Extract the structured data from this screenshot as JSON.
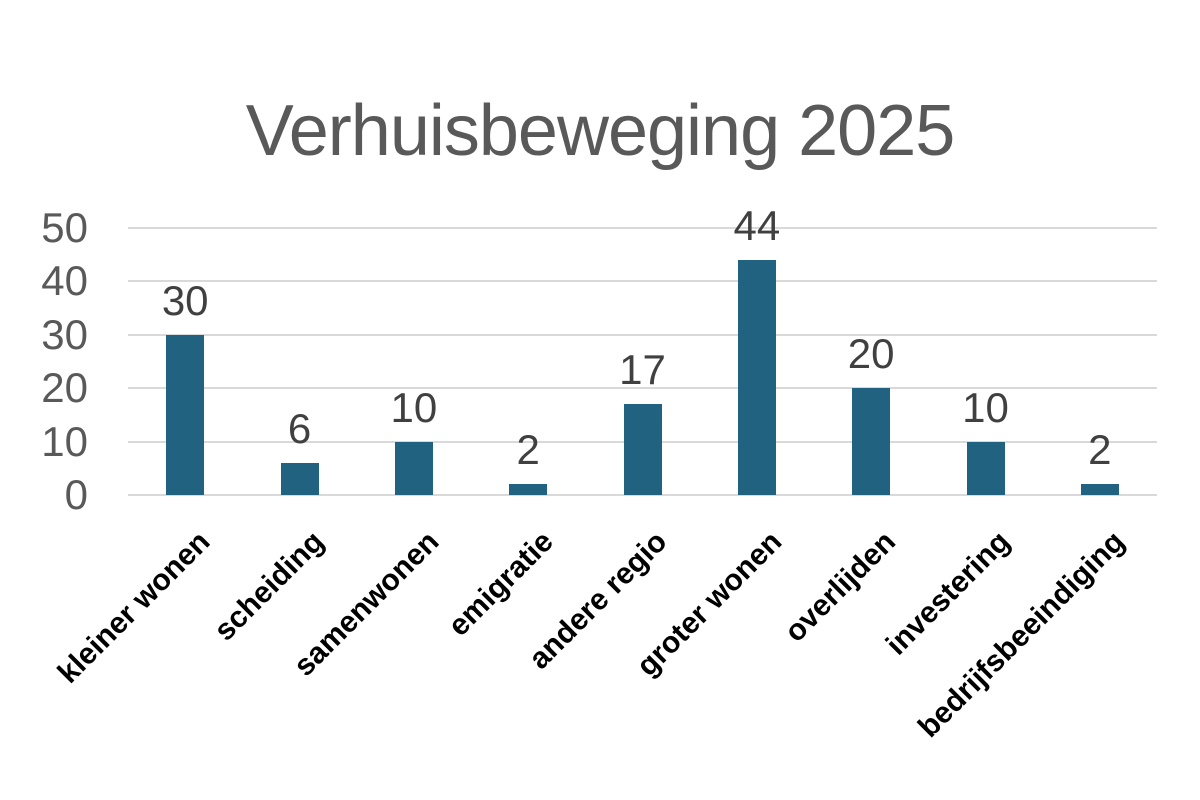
{
  "chart_data": {
    "type": "bar",
    "title": "Verhuisbeweging 2025",
    "categories": [
      "kleiner wonen",
      "scheiding",
      "samenwonen",
      "emigratie",
      "andere regio",
      "groter wonen",
      "overlijden",
      "investering",
      "bedrijfsbeeindiging"
    ],
    "values": [
      30,
      6,
      10,
      2,
      17,
      44,
      20,
      10,
      2
    ],
    "xlabel": "",
    "ylabel": "",
    "ylim": [
      0,
      50
    ],
    "yticks": [
      0,
      10,
      20,
      30,
      40,
      50
    ],
    "grid": true,
    "legend": false,
    "data_labels": true,
    "colors": {
      "bar": "#206280",
      "title": "#595959",
      "axis_labels": "#595959",
      "data_labels": "#404040",
      "category_labels": "#000000",
      "gridlines": "#D9D9D9",
      "background": "#FFFFFF"
    }
  }
}
